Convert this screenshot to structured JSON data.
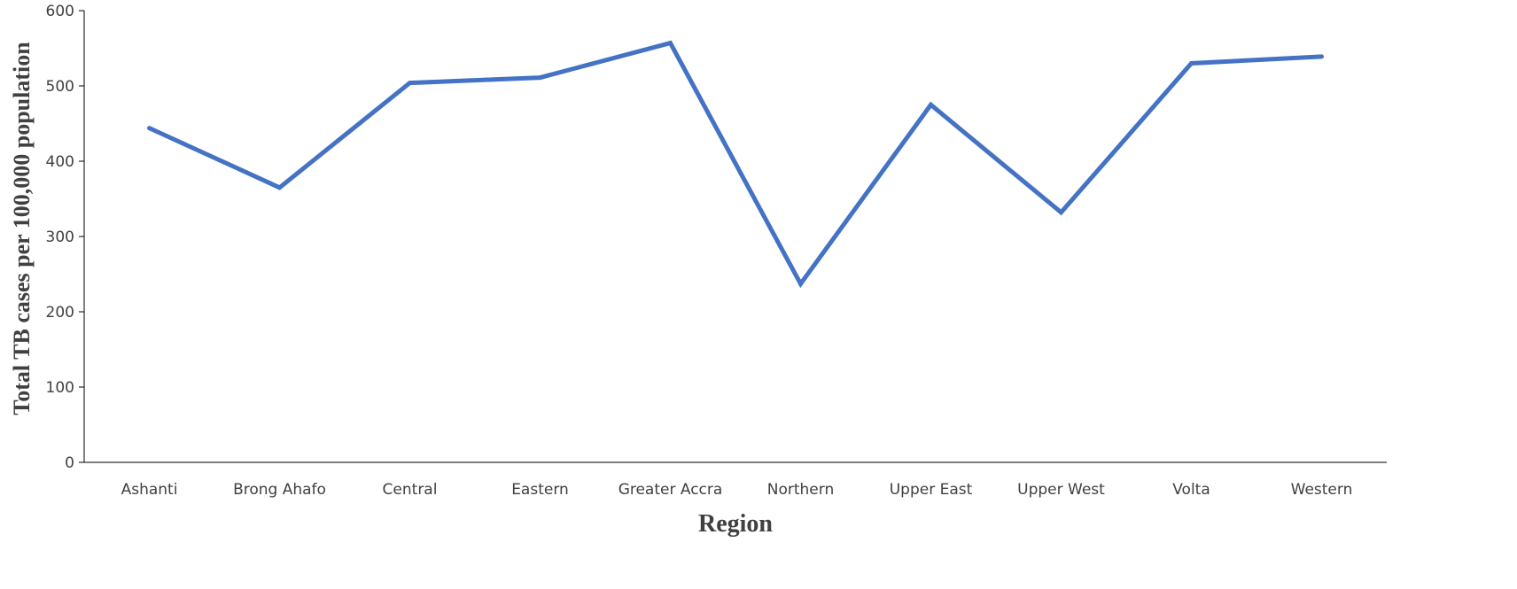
{
  "chart_data": {
    "type": "line",
    "categories": [
      "Ashanti",
      "Brong Ahafo",
      "Central",
      "Eastern",
      "Greater Accra",
      "Northern",
      "Upper East",
      "Upper West",
      "Volta",
      "Western"
    ],
    "series": [
      {
        "values": [
          444,
          365,
          504,
          511,
          557,
          237,
          475,
          332,
          530,
          539
        ]
      }
    ],
    "xlabel": "Region",
    "ylabel": "Total TB cases per 100,000 population",
    "ylim": [
      0,
      600
    ],
    "yticks": [
      0,
      100,
      200,
      300,
      400,
      500,
      600
    ],
    "grid": false,
    "line_color": "#4472C4"
  }
}
